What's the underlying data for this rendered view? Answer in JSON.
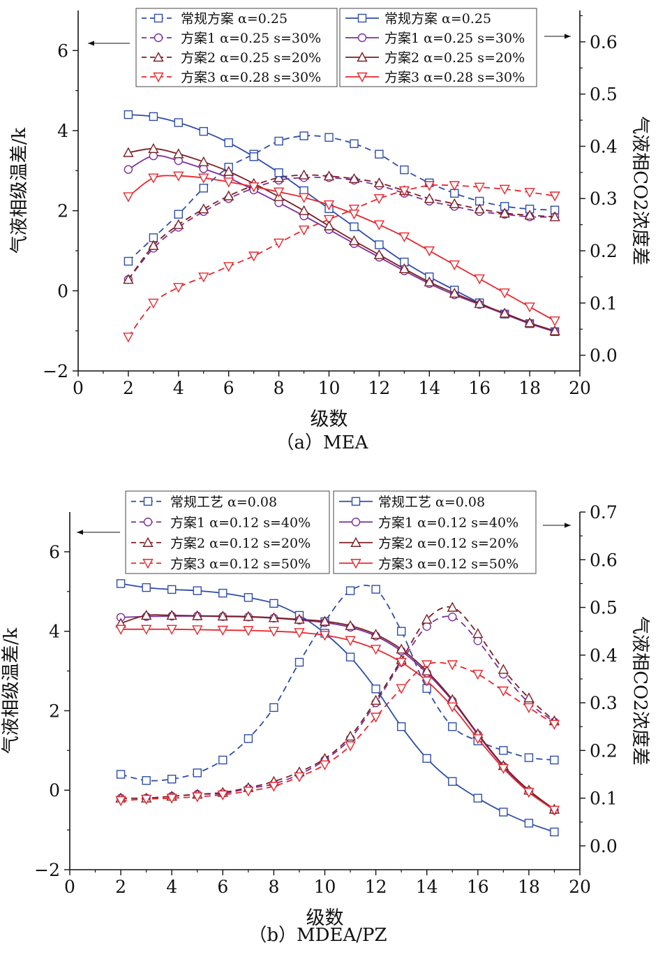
{
  "chart_data": [
    {
      "type": "line",
      "caption": "（a）MEA",
      "xlabel": "级数",
      "ylabel_left": "气液相级温差/k",
      "ylabel_right": "气液相CO2浓度差",
      "xlim": [
        0,
        20
      ],
      "ylim_left": [
        -2,
        7
      ],
      "ylim_right": [
        -0.03,
        0.66
      ],
      "x_ticks": [
        0,
        2,
        4,
        6,
        8,
        10,
        12,
        14,
        16,
        18,
        20
      ],
      "y_left_ticks": [
        -2,
        0,
        2,
        4,
        6
      ],
      "y_right_ticks": [
        0.0,
        0.1,
        0.2,
        0.3,
        0.4,
        0.5,
        0.6
      ],
      "grid": false,
      "x": [
        2,
        3,
        4,
        5,
        6,
        7,
        8,
        9,
        10,
        11,
        12,
        13,
        14,
        15,
        16,
        17,
        18,
        19
      ],
      "legend_left": [
        "常规方案 α=0.25",
        "方案1 α=0.25 s=30%",
        "方案2 α=0.25 s=20%",
        "方案3 α=0.28 s=30%"
      ],
      "legend_right": [
        "常规方案 α=0.25",
        "方案1 α=0.25 s=30%",
        "方案2 α=0.25 s=20%",
        "方案3 α=0.28 s=30%"
      ],
      "series": [
        {
          "name": "常规方案 α=0.25",
          "axis": "right",
          "dashed": true,
          "marker": "square-half",
          "color": "#2e4da7",
          "values": [
            0.18,
            0.225,
            0.27,
            0.32,
            0.36,
            0.385,
            0.41,
            0.42,
            0.417,
            0.405,
            0.385,
            0.355,
            0.33,
            0.31,
            0.295,
            0.285,
            0.28,
            0.278
          ]
        },
        {
          "name": "方案1 α=0.25 s=30%",
          "axis": "right",
          "dashed": true,
          "marker": "circle-half",
          "color": "#7b2e99",
          "values": [
            0.145,
            0.205,
            0.245,
            0.275,
            0.3,
            0.32,
            0.335,
            0.34,
            0.34,
            0.335,
            0.325,
            0.31,
            0.295,
            0.285,
            0.275,
            0.27,
            0.265,
            0.265
          ]
        },
        {
          "name": "方案2 α=0.25 s=20%",
          "axis": "right",
          "dashed": true,
          "marker": "triangle-up-half",
          "color": "#7a1f24",
          "values": [
            0.145,
            0.21,
            0.25,
            0.28,
            0.305,
            0.325,
            0.34,
            0.345,
            0.343,
            0.338,
            0.33,
            0.315,
            0.3,
            0.29,
            0.28,
            0.272,
            0.268,
            0.265
          ]
        },
        {
          "name": "方案3 α=0.28 s=30%",
          "axis": "right",
          "dashed": true,
          "marker": "triangle-down-half",
          "color": "#e8262c",
          "values": [
            0.035,
            0.1,
            0.13,
            0.15,
            0.17,
            0.19,
            0.215,
            0.24,
            0.26,
            0.28,
            0.3,
            0.315,
            0.325,
            0.325,
            0.322,
            0.318,
            0.312,
            0.305
          ]
        },
        {
          "name": "常规方案 α=0.25",
          "axis": "left",
          "dashed": false,
          "marker": "square-open",
          "color": "#2e4da7",
          "values": [
            4.4,
            4.35,
            4.2,
            3.98,
            3.7,
            3.35,
            2.95,
            2.5,
            2.05,
            1.6,
            1.15,
            0.72,
            0.35,
            0.02,
            -0.3,
            -0.58,
            -0.82,
            -1.02
          ]
        },
        {
          "name": "方案1 α=0.25 s=30%",
          "axis": "left",
          "dashed": false,
          "marker": "circle-open",
          "color": "#7b2e99",
          "values": [
            3.03,
            3.37,
            3.25,
            3.05,
            2.82,
            2.52,
            2.2,
            1.87,
            1.53,
            1.18,
            0.84,
            0.5,
            0.18,
            -0.1,
            -0.34,
            -0.58,
            -0.82,
            -1.02
          ]
        },
        {
          "name": "方案2 α=0.25 s=20%",
          "axis": "left",
          "dashed": false,
          "marker": "triangle-up-open",
          "color": "#7a1f24",
          "values": [
            3.45,
            3.55,
            3.42,
            3.22,
            2.98,
            2.68,
            2.35,
            2.0,
            1.62,
            1.25,
            0.9,
            0.55,
            0.22,
            -0.06,
            -0.32,
            -0.56,
            -0.8,
            -1.0
          ]
        },
        {
          "name": "方案3 α=0.28 s=30%",
          "axis": "left",
          "dashed": false,
          "marker": "triangle-down-open",
          "color": "#e8262c",
          "values": [
            2.35,
            2.82,
            2.87,
            2.82,
            2.72,
            2.6,
            2.47,
            2.33,
            2.15,
            1.92,
            1.65,
            1.35,
            1.0,
            0.65,
            0.3,
            -0.05,
            -0.4,
            -0.75
          ]
        }
      ]
    },
    {
      "type": "line",
      "caption": "（b）MDEA/PZ",
      "xlabel": "级数",
      "ylabel_left": "气液相级温差/k",
      "ylabel_right": "气液相CO2浓度差",
      "xlim": [
        0,
        20
      ],
      "ylim_left": [
        -2,
        7
      ],
      "ylim_right": [
        -0.05,
        0.7
      ],
      "x_ticks": [
        0,
        2,
        4,
        6,
        8,
        10,
        12,
        14,
        16,
        18,
        20
      ],
      "y_left_ticks": [
        -2,
        0,
        2,
        4,
        6
      ],
      "y_right_ticks": [
        0.0,
        0.1,
        0.2,
        0.3,
        0.4,
        0.5,
        0.6,
        0.7
      ],
      "grid": false,
      "x": [
        2,
        3,
        4,
        5,
        6,
        7,
        8,
        9,
        10,
        11,
        12,
        13,
        14,
        15,
        16,
        17,
        18,
        19
      ],
      "legend_left": [
        "常规工艺 α=0.08",
        "方案1 α=0.12 s=40%",
        "方案2 α=0.12 s=20%",
        "方案3 α=0.12 s=50%"
      ],
      "legend_right": [
        "常规工艺 α=0.08",
        "方案1 α=0.12 s=40%",
        "方案2 α=0.12 s=20%",
        "方案3 α=0.12 s=50%"
      ],
      "series": [
        {
          "name": "常规工艺 α=0.08",
          "axis": "right",
          "dashed": true,
          "marker": "square-half",
          "color": "#2e4da7",
          "values": [
            0.15,
            0.137,
            0.14,
            0.153,
            0.18,
            0.225,
            0.29,
            0.385,
            0.47,
            0.535,
            0.538,
            0.45,
            0.33,
            0.25,
            0.22,
            0.2,
            0.185,
            0.18
          ]
        },
        {
          "name": "方案1 α=0.12 s=40%",
          "axis": "right",
          "dashed": true,
          "marker": "circle-half",
          "color": "#7b2e99",
          "values": [
            0.1,
            0.1,
            0.104,
            0.108,
            0.11,
            0.12,
            0.13,
            0.15,
            0.18,
            0.225,
            0.3,
            0.385,
            0.46,
            0.48,
            0.43,
            0.36,
            0.3,
            0.26
          ]
        },
        {
          "name": "方案2 α=0.12 s=20%",
          "axis": "right",
          "dashed": true,
          "marker": "triangle-up-half",
          "color": "#7a1f24",
          "values": [
            0.1,
            0.1,
            0.104,
            0.108,
            0.112,
            0.122,
            0.135,
            0.155,
            0.183,
            0.23,
            0.305,
            0.39,
            0.475,
            0.5,
            0.445,
            0.37,
            0.31,
            0.262
          ]
        },
        {
          "name": "方案3 α=0.12 s=50%",
          "axis": "right",
          "dashed": true,
          "marker": "triangle-down-half",
          "color": "#e8262c",
          "values": [
            0.095,
            0.098,
            0.1,
            0.103,
            0.107,
            0.115,
            0.125,
            0.145,
            0.17,
            0.21,
            0.27,
            0.33,
            0.38,
            0.38,
            0.36,
            0.325,
            0.29,
            0.255
          ]
        },
        {
          "name": "常规工艺 α=0.08",
          "axis": "left",
          "dashed": false,
          "marker": "square-open",
          "color": "#2e4da7",
          "values": [
            5.2,
            5.1,
            5.05,
            5.02,
            4.96,
            4.85,
            4.7,
            4.4,
            3.95,
            3.35,
            2.55,
            1.6,
            0.8,
            0.22,
            -0.2,
            -0.55,
            -0.83,
            -1.05
          ]
        },
        {
          "name": "方案1 α=0.12 s=40%",
          "axis": "left",
          "dashed": false,
          "marker": "circle-open",
          "color": "#7b2e99",
          "values": [
            4.35,
            4.37,
            4.38,
            4.38,
            4.37,
            4.36,
            4.33,
            4.28,
            4.22,
            4.1,
            3.88,
            3.5,
            2.95,
            2.25,
            1.4,
            0.6,
            -0.02,
            -0.5
          ]
        },
        {
          "name": "方案2 α=0.12 s=20%",
          "axis": "left",
          "dashed": false,
          "marker": "triangle-up-open",
          "color": "#7a1f24",
          "values": [
            4.2,
            4.4,
            4.4,
            4.39,
            4.38,
            4.37,
            4.34,
            4.3,
            4.25,
            4.14,
            3.92,
            3.55,
            3.0,
            2.28,
            1.42,
            0.62,
            0.0,
            -0.48
          ]
        },
        {
          "name": "方案3 α=0.12 s=50%",
          "axis": "left",
          "dashed": false,
          "marker": "triangle-down-open",
          "color": "#e8262c",
          "values": [
            4.05,
            4.05,
            4.05,
            4.04,
            4.03,
            4.02,
            4.0,
            3.97,
            3.9,
            3.77,
            3.55,
            3.22,
            2.75,
            2.1,
            1.3,
            0.55,
            -0.05,
            -0.5
          ]
        }
      ]
    }
  ]
}
